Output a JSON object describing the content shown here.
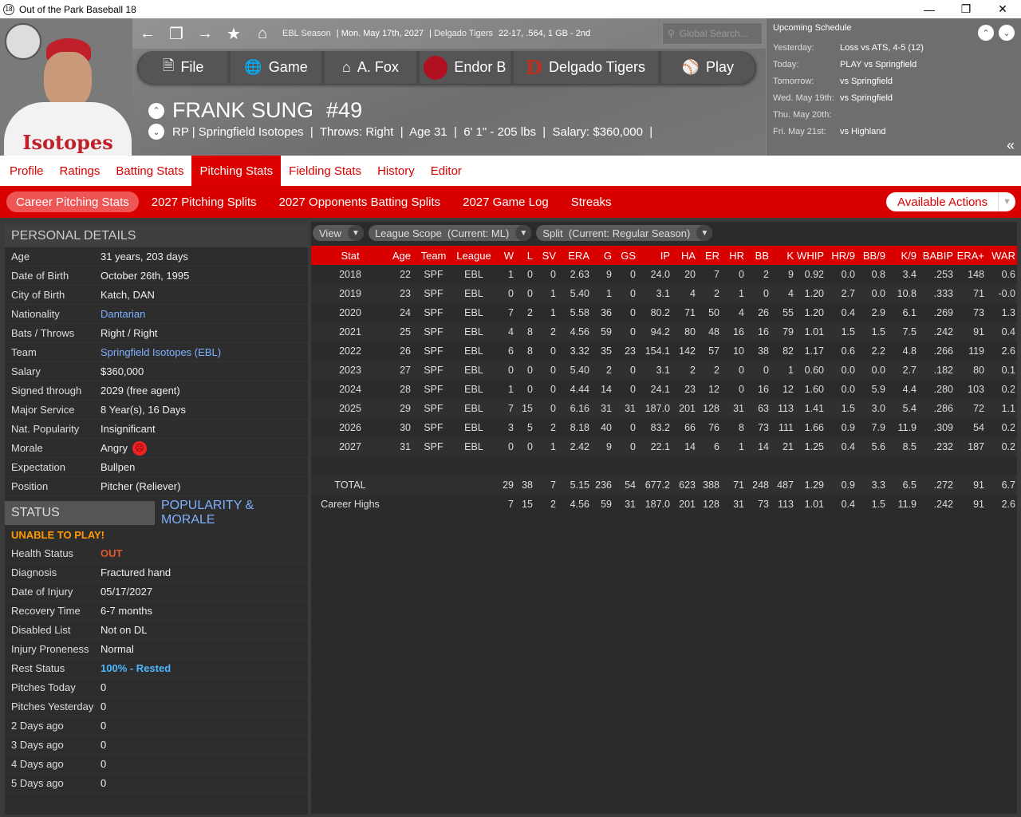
{
  "window": {
    "title": "Out of the Park Baseball 18",
    "logo": "18"
  },
  "topbar": {
    "league": "EBL Season",
    "date": "Mon. May 17th, 2027",
    "team": "Delgado Tigers",
    "record": "22-17, .564, 1 GB - 2nd",
    "search_placeholder": "Global Search..."
  },
  "menu": [
    {
      "label": "File",
      "icon": "file-icon"
    },
    {
      "label": "Game",
      "icon": "globe-icon"
    },
    {
      "label": "A. Fox",
      "icon": "home-icon"
    },
    {
      "label": "Endor B",
      "icon": "league-logo-icon"
    },
    {
      "label": "Delgado Tigers",
      "icon": "team-logo-icon"
    },
    {
      "label": "Play",
      "icon": "baseball-icon"
    }
  ],
  "player": {
    "name": "FRANK SUNG",
    "number": "#49",
    "line": "RP | Springfield Isotopes  |  Throws: Right  |  Age 31  |  6' 1\" - 205 lbs  |  Salary: $360,000  |",
    "jersey_text": "Isotopes"
  },
  "schedule": {
    "title": "Upcoming Schedule",
    "rows": [
      {
        "label": "Yesterday:",
        "value": "Loss vs ATS, 4-5 (12)"
      },
      {
        "label": "Today:",
        "value": "PLAY vs Springfield"
      },
      {
        "label": "Tomorrow:",
        "value": "vs Springfield"
      },
      {
        "label": "Wed. May 19th:",
        "value": "vs Springfield"
      },
      {
        "label": "Thu. May 20th:",
        "value": ""
      },
      {
        "label": "Fri. May 21st:",
        "value": "vs Highland"
      }
    ]
  },
  "tabs": [
    "Profile",
    "Ratings",
    "Batting Stats",
    "Pitching Stats",
    "Fielding Stats",
    "History",
    "Editor"
  ],
  "active_tab": "Pitching Stats",
  "subtabs": [
    "Career Pitching Stats",
    "2027 Pitching Splits",
    "2027 Opponents Batting Splits",
    "2027 Game Log",
    "Streaks"
  ],
  "available_actions": "Available Actions",
  "personal": {
    "title": "PERSONAL DETAILS",
    "rows": [
      {
        "k": "Age",
        "v": "31 years, 203 days"
      },
      {
        "k": "Date of Birth",
        "v": "October 26th, 1995"
      },
      {
        "k": "City of Birth",
        "v": "Katch, DAN"
      },
      {
        "k": "Nationality",
        "v": "Dantarian",
        "link": true
      },
      {
        "k": "Bats / Throws",
        "v": "Right / Right"
      },
      {
        "k": "Team",
        "v": "Springfield Isotopes (EBL)",
        "link": true
      },
      {
        "k": "Salary",
        "v": "$360,000"
      },
      {
        "k": "Signed through",
        "v": "2029 (free agent)"
      },
      {
        "k": "Major Service",
        "v": "8 Year(s), 16 Days"
      },
      {
        "k": "Nat. Popularity",
        "v": "Insignificant"
      },
      {
        "k": "Morale",
        "v": "Angry"
      },
      {
        "k": "Expectation",
        "v": "Bullpen"
      },
      {
        "k": "Position",
        "v": "Pitcher (Reliever)"
      }
    ]
  },
  "status": {
    "tab_status": "STATUS",
    "tab_pop": "POPULARITY & MORALE",
    "warning": "UNABLE TO PLAY!",
    "rows": [
      {
        "k": "Health Status",
        "v": "OUT",
        "color": "#e05a2a"
      },
      {
        "k": "Diagnosis",
        "v": "Fractured hand"
      },
      {
        "k": "Date of Injury",
        "v": "05/17/2027"
      },
      {
        "k": "Recovery Time",
        "v": "6-7 months"
      },
      {
        "k": "Disabled List",
        "v": "Not on DL"
      },
      {
        "k": "Injury Proneness",
        "v": "Normal"
      },
      {
        "k": "Rest Status",
        "v": "100% - Rested",
        "color": "#4db8ff"
      },
      {
        "k": "Pitches Today",
        "v": "0"
      },
      {
        "k": "Pitches Yesterday",
        "v": "0"
      },
      {
        "k": "2 Days ago",
        "v": "0"
      },
      {
        "k": "3 Days ago",
        "v": "0"
      },
      {
        "k": "4 Days ago",
        "v": "0"
      },
      {
        "k": "5 Days ago",
        "v": "0"
      }
    ]
  },
  "filters": {
    "view": "View",
    "scope": "League Scope  (Current: ML)",
    "split": "Split  (Current: Regular Season)"
  },
  "stats": {
    "headers": [
      "Stat",
      "Age",
      "Team",
      "League",
      "W",
      "L",
      "SV",
      "ERA",
      "G",
      "GS",
      "IP",
      "HA",
      "ER",
      "HR",
      "BB",
      "K",
      "WHIP",
      "HR/9",
      "BB/9",
      "K/9",
      "BABIP",
      "ERA+",
      "WAR"
    ],
    "rows": [
      [
        "2018",
        "22",
        "SPF",
        "EBL",
        "1",
        "0",
        "0",
        "2.63",
        "9",
        "0",
        "24.0",
        "20",
        "7",
        "0",
        "2",
        "9",
        "0.92",
        "0.0",
        "0.8",
        "3.4",
        ".253",
        "148",
        "0.6"
      ],
      [
        "2019",
        "23",
        "SPF",
        "EBL",
        "0",
        "0",
        "1",
        "5.40",
        "1",
        "0",
        "3.1",
        "4",
        "2",
        "1",
        "0",
        "4",
        "1.20",
        "2.7",
        "0.0",
        "10.8",
        ".333",
        "71",
        "-0.0"
      ],
      [
        "2020",
        "24",
        "SPF",
        "EBL",
        "7",
        "2",
        "1",
        "5.58",
        "36",
        "0",
        "80.2",
        "71",
        "50",
        "4",
        "26",
        "55",
        "1.20",
        "0.4",
        "2.9",
        "6.1",
        ".269",
        "73",
        "1.3"
      ],
      [
        "2021",
        "25",
        "SPF",
        "EBL",
        "4",
        "8",
        "2",
        "4.56",
        "59",
        "0",
        "94.2",
        "80",
        "48",
        "16",
        "16",
        "79",
        "1.01",
        "1.5",
        "1.5",
        "7.5",
        ".242",
        "91",
        "0.4"
      ],
      [
        "2022",
        "26",
        "SPF",
        "EBL",
        "6",
        "8",
        "0",
        "3.32",
        "35",
        "23",
        "154.1",
        "142",
        "57",
        "10",
        "38",
        "82",
        "1.17",
        "0.6",
        "2.2",
        "4.8",
        ".266",
        "119",
        "2.6"
      ],
      [
        "2023",
        "27",
        "SPF",
        "EBL",
        "0",
        "0",
        "0",
        "5.40",
        "2",
        "0",
        "3.1",
        "2",
        "2",
        "0",
        "0",
        "1",
        "0.60",
        "0.0",
        "0.0",
        "2.7",
        ".182",
        "80",
        "0.1"
      ],
      [
        "2024",
        "28",
        "SPF",
        "EBL",
        "1",
        "0",
        "0",
        "4.44",
        "14",
        "0",
        "24.1",
        "23",
        "12",
        "0",
        "16",
        "12",
        "1.60",
        "0.0",
        "5.9",
        "4.4",
        ".280",
        "103",
        "0.2"
      ],
      [
        "2025",
        "29",
        "SPF",
        "EBL",
        "7",
        "15",
        "0",
        "6.16",
        "31",
        "31",
        "187.0",
        "201",
        "128",
        "31",
        "63",
        "113",
        "1.41",
        "1.5",
        "3.0",
        "5.4",
        ".286",
        "72",
        "1.1"
      ],
      [
        "2026",
        "30",
        "SPF",
        "EBL",
        "3",
        "5",
        "2",
        "8.18",
        "40",
        "0",
        "83.2",
        "66",
        "76",
        "8",
        "73",
        "111",
        "1.66",
        "0.9",
        "7.9",
        "11.9",
        ".309",
        "54",
        "0.2"
      ],
      [
        "2027",
        "31",
        "SPF",
        "EBL",
        "0",
        "0",
        "1",
        "2.42",
        "9",
        "0",
        "22.1",
        "14",
        "6",
        "1",
        "14",
        "21",
        "1.25",
        "0.4",
        "5.6",
        "8.5",
        ".232",
        "187",
        "0.2"
      ],
      [
        "",
        "",
        "",
        "",
        "",
        "",
        "",
        "",
        "",
        "",
        "",
        "",
        "",
        "",
        "",
        "",
        "",
        "",
        "",
        "",
        "",
        "",
        ""
      ],
      [
        "TOTAL",
        "",
        "",
        "",
        "29",
        "38",
        "7",
        "5.15",
        "236",
        "54",
        "677.2",
        "623",
        "388",
        "71",
        "248",
        "487",
        "1.29",
        "0.9",
        "3.3",
        "6.5",
        ".272",
        "91",
        "6.7"
      ],
      [
        "Career Highs",
        "",
        "",
        "",
        "7",
        "15",
        "2",
        "4.56",
        "59",
        "31",
        "187.0",
        "201",
        "128",
        "31",
        "73",
        "113",
        "1.01",
        "0.4",
        "1.5",
        "11.9",
        ".242",
        "91",
        "2.6"
      ]
    ]
  }
}
